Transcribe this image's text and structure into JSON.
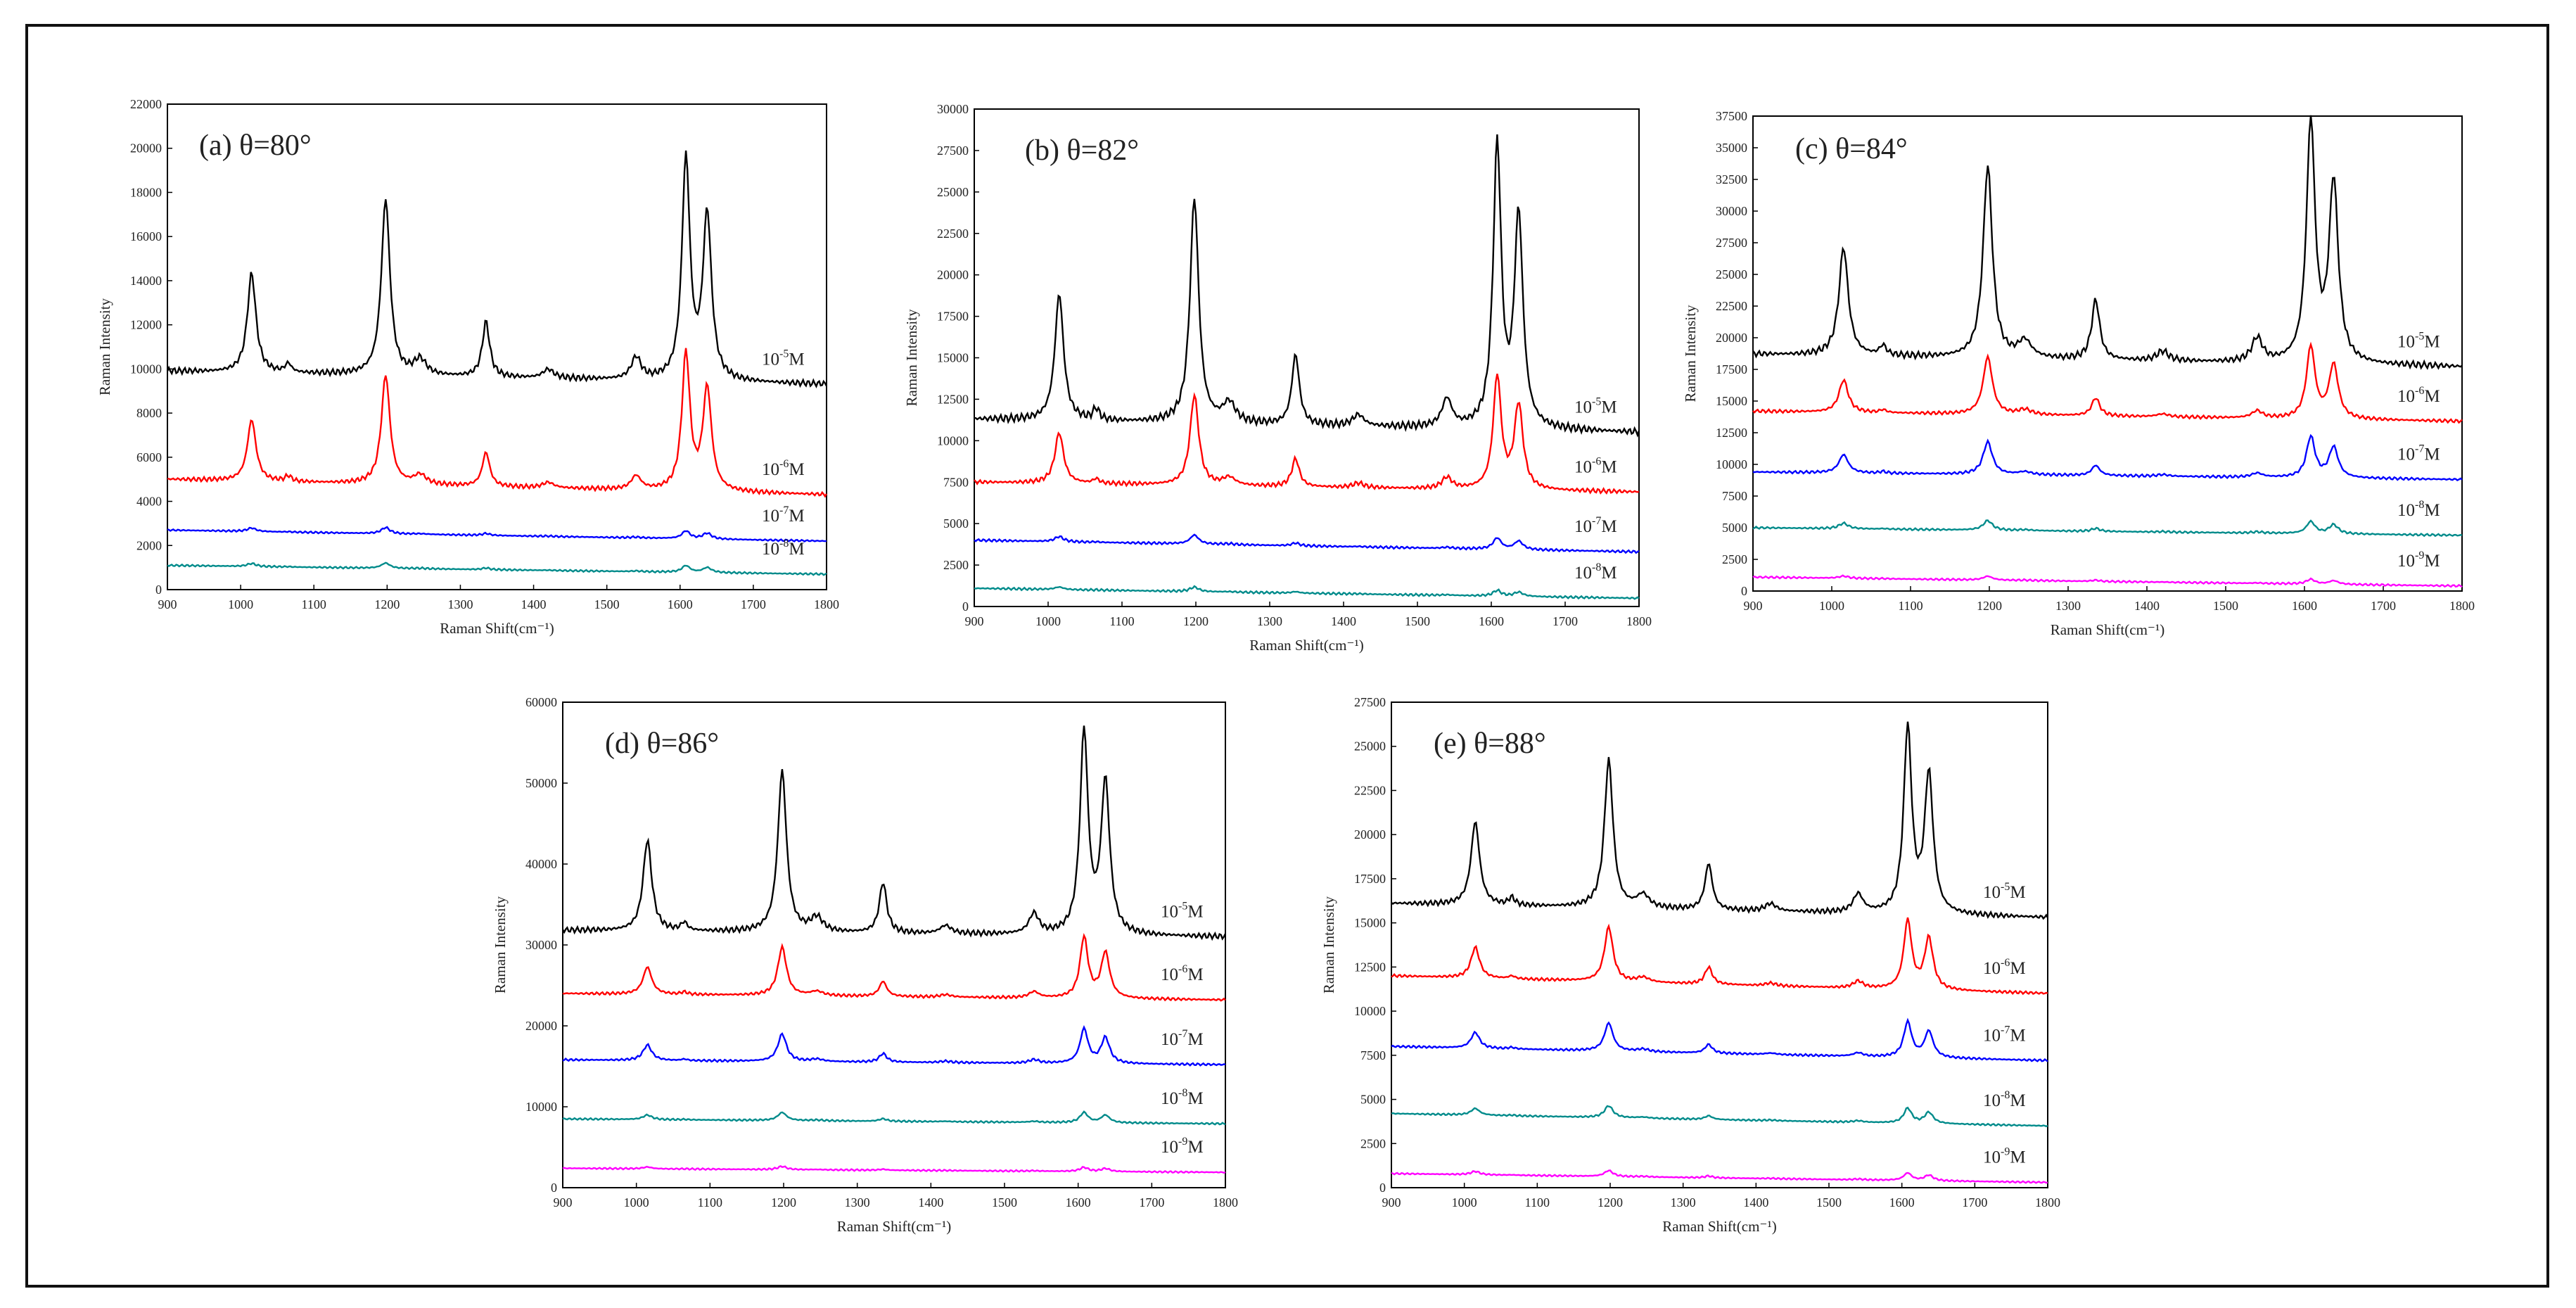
{
  "figure": {
    "background": "#ffffff",
    "border": "#111111"
  },
  "series_colors": {
    "1e-5": "#000000",
    "1e-6": "#ff0000",
    "1e-7": "#0000ff",
    "1e-8": "#008b8b",
    "1e-9": "#ff00ff"
  },
  "chart_data": [
    {
      "type": "line",
      "title": "(a) θ=80°",
      "xlabel": "Raman Shift(cm⁻¹)",
      "ylabel": "Raman Intensity",
      "xlim": [
        900,
        1800
      ],
      "ylim": [
        0,
        22000
      ],
      "xticks": [
        "900",
        "1000",
        "1100",
        "1200",
        "1300",
        "1400",
        "1500",
        "1600",
        "1700",
        "1800"
      ],
      "yticks": [
        "0",
        "2000",
        "4000",
        "6000",
        "8000",
        "10000",
        "12000",
        "14000",
        "16000",
        "18000",
        "20000",
        "22000"
      ],
      "series": [
        {
          "name": "1e-5",
          "label_base": "10",
          "label_exp": "-5",
          "label_unit": "M",
          "baseline_start": 9900,
          "baseline_end": 9300,
          "scale": 1.0
        },
        {
          "name": "1e-6",
          "label_base": "10",
          "label_exp": "-6",
          "label_unit": "M",
          "baseline_start": 5000,
          "baseline_end": 4300,
          "scale": 0.62
        },
        {
          "name": "1e-7",
          "label_base": "10",
          "label_exp": "-7",
          "label_unit": "M",
          "baseline_start": 2700,
          "baseline_end": 2200,
          "scale": 0.035
        },
        {
          "name": "1e-8",
          "label_base": "10",
          "label_exp": "-8",
          "label_unit": "M",
          "baseline_start": 1100,
          "baseline_end": 700,
          "scale": 0.03
        }
      ],
      "peak_scale": 10000
    },
    {
      "type": "line",
      "title": "(b) θ=82°",
      "xlabel": "Raman Shift(cm⁻¹)",
      "ylabel": "Raman Intensity",
      "xlim": [
        900,
        1800
      ],
      "ylim": [
        0,
        30000
      ],
      "xticks": [
        "900",
        "1000",
        "1100",
        "1200",
        "1300",
        "1400",
        "1500",
        "1600",
        "1700",
        "1800"
      ],
      "yticks": [
        "0",
        "2500",
        "5000",
        "7500",
        "10000",
        "12500",
        "15000",
        "17500",
        "20000",
        "22500",
        "25000",
        "27500",
        "30000"
      ],
      "series": [
        {
          "name": "1e-5",
          "label_base": "10",
          "label_exp": "-5",
          "label_unit": "M",
          "baseline_start": 11300,
          "baseline_end": 10500,
          "scale": 1.0
        },
        {
          "name": "1e-6",
          "label_base": "10",
          "label_exp": "-6",
          "label_unit": "M",
          "baseline_start": 7500,
          "baseline_end": 6900,
          "scale": 0.4
        },
        {
          "name": "1e-7",
          "label_base": "10",
          "label_exp": "-7",
          "label_unit": "M",
          "baseline_start": 4000,
          "baseline_end": 3300,
          "scale": 0.04
        },
        {
          "name": "1e-8",
          "label_base": "10",
          "label_exp": "-8",
          "label_unit": "M",
          "baseline_start": 1100,
          "baseline_end": 500,
          "scale": 0.02
        }
      ],
      "peak_scale": 17000
    },
    {
      "type": "line",
      "title": "(c) θ=84°",
      "xlabel": "Raman Shift(cm⁻¹)",
      "ylabel": "Raman Intensity",
      "xlim": [
        900,
        1800
      ],
      "ylim": [
        0,
        37500
      ],
      "xticks": [
        "900",
        "1000",
        "1100",
        "1200",
        "1300",
        "1400",
        "1500",
        "1600",
        "1700",
        "1800"
      ],
      "yticks": [
        "0",
        "2500",
        "5000",
        "7500",
        "10000",
        "12500",
        "15000",
        "17500",
        "20000",
        "22500",
        "25000",
        "27500",
        "30000",
        "32500",
        "35000",
        "37500"
      ],
      "series": [
        {
          "name": "1e-5",
          "label_base": "10",
          "label_exp": "-5",
          "label_unit": "M",
          "baseline_start": 18700,
          "baseline_end": 17700,
          "scale": 1.0
        },
        {
          "name": "1e-6",
          "label_base": "10",
          "label_exp": "-6",
          "label_unit": "M",
          "baseline_start": 14200,
          "baseline_end": 13400,
          "scale": 0.3
        },
        {
          "name": "1e-7",
          "label_base": "10",
          "label_exp": "-7",
          "label_unit": "M",
          "baseline_start": 9400,
          "baseline_end": 8800,
          "scale": 0.17
        },
        {
          "name": "1e-8",
          "label_base": "10",
          "label_exp": "-8",
          "label_unit": "M",
          "baseline_start": 5000,
          "baseline_end": 4400,
          "scale": 0.05
        },
        {
          "name": "1e-9",
          "label_base": "10",
          "label_exp": "-9",
          "label_unit": "M",
          "baseline_start": 1100,
          "baseline_end": 400,
          "scale": 0.02
        }
      ],
      "peak_scale": 19000
    },
    {
      "type": "line",
      "title": "(d) θ=86°",
      "xlabel": "Raman Shift(cm⁻¹)",
      "ylabel": "Raman Intensity",
      "xlim": [
        900,
        1800
      ],
      "ylim": [
        0,
        60000
      ],
      "xticks": [
        "900",
        "1000",
        "1100",
        "1200",
        "1300",
        "1400",
        "1500",
        "1600",
        "1700",
        "1800"
      ],
      "yticks": [
        "0",
        "10000",
        "20000",
        "30000",
        "40000",
        "50000",
        "60000"
      ],
      "series": [
        {
          "name": "1e-5",
          "label_base": "10",
          "label_exp": "-5",
          "label_unit": "M",
          "baseline_start": 31800,
          "baseline_end": 31000,
          "scale": 1.0
        },
        {
          "name": "1e-6",
          "label_base": "10",
          "label_exp": "-6",
          "label_unit": "M",
          "baseline_start": 24000,
          "baseline_end": 23200,
          "scale": 0.3
        },
        {
          "name": "1e-7",
          "label_base": "10",
          "label_exp": "-7",
          "label_unit": "M",
          "baseline_start": 15800,
          "baseline_end": 15200,
          "scale": 0.17
        },
        {
          "name": "1e-8",
          "label_base": "10",
          "label_exp": "-8",
          "label_unit": "M",
          "baseline_start": 8500,
          "baseline_end": 7900,
          "scale": 0.05
        },
        {
          "name": "1e-9",
          "label_base": "10",
          "label_exp": "-9",
          "label_unit": "M",
          "baseline_start": 2400,
          "baseline_end": 1900,
          "scale": 0.02
        }
      ],
      "peak_scale": 25000
    },
    {
      "type": "line",
      "title": "(e) θ=88°",
      "xlabel": "Raman Shift(cm⁻¹)",
      "ylabel": "Raman Intensity",
      "xlim": [
        900,
        1800
      ],
      "ylim": [
        0,
        27500
      ],
      "xticks": [
        "900",
        "1000",
        "1100",
        "1200",
        "1300",
        "1400",
        "1500",
        "1600",
        "1700",
        "1800"
      ],
      "yticks": [
        "0",
        "2500",
        "5000",
        "7500",
        "10000",
        "12500",
        "15000",
        "17500",
        "20000",
        "22500",
        "25000",
        "27500"
      ],
      "series": [
        {
          "name": "1e-5",
          "label_base": "10",
          "label_exp": "-5",
          "label_unit": "M",
          "baseline_start": 16100,
          "baseline_end": 15300,
          "scale": 1.0
        },
        {
          "name": "1e-6",
          "label_base": "10",
          "label_exp": "-6",
          "label_unit": "M",
          "baseline_start": 12000,
          "baseline_end": 11000,
          "scale": 0.37
        },
        {
          "name": "1e-7",
          "label_base": "10",
          "label_exp": "-7",
          "label_unit": "M",
          "baseline_start": 8000,
          "baseline_end": 7200,
          "scale": 0.19
        },
        {
          "name": "1e-8",
          "label_base": "10",
          "label_exp": "-8",
          "label_unit": "M",
          "baseline_start": 4200,
          "baseline_end": 3500,
          "scale": 0.08
        },
        {
          "name": "1e-9",
          "label_base": "10",
          "label_exp": "-9",
          "label_unit": "M",
          "baseline_start": 800,
          "baseline_end": 300,
          "scale": 0.04
        }
      ],
      "peak_scale": 10500
    }
  ],
  "peaks": [
    {
      "center": 1015,
      "width": 7,
      "height": 0.45
    },
    {
      "center": 1065,
      "width": 5,
      "height": 0.04
    },
    {
      "center": 1198,
      "width": 7,
      "height": 0.8
    },
    {
      "center": 1245,
      "width": 10,
      "height": 0.07
    },
    {
      "center": 1335,
      "width": 6,
      "height": 0.25
    },
    {
      "center": 1420,
      "width": 9,
      "height": 0.04
    },
    {
      "center": 1540,
      "width": 8,
      "height": 0.1
    },
    {
      "center": 1608,
      "width": 6.5,
      "height": 1.0
    },
    {
      "center": 1637,
      "width": 7,
      "height": 0.75
    }
  ]
}
